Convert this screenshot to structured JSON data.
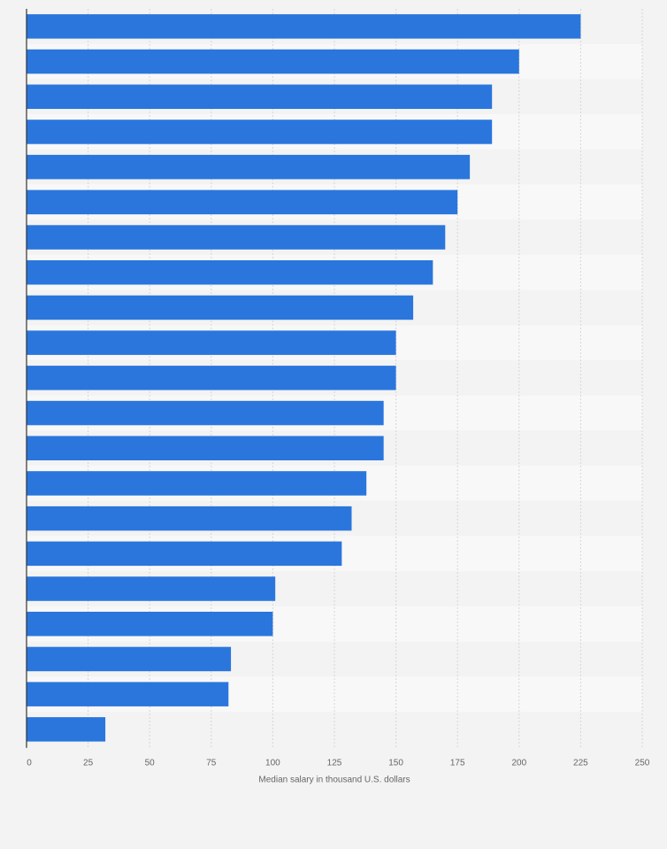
{
  "chart_data": {
    "type": "bar",
    "orientation": "horizontal",
    "title": "",
    "xlabel": "Median salary in thousand U.S. dollars",
    "ylabel": "",
    "xlim": [
      0,
      250
    ],
    "x_ticks": [
      "0",
      "25",
      "50",
      "75",
      "100",
      "125",
      "150",
      "175",
      "200",
      "225",
      "250"
    ],
    "values": [
      225,
      200,
      189,
      189,
      180,
      175,
      170,
      165,
      157,
      150,
      150,
      145,
      145,
      138,
      132,
      128,
      101,
      100,
      83,
      82,
      32
    ],
    "grid": true,
    "legend": "none",
    "bar_color": "#2a76dd",
    "band_colors": [
      "#f3f3f3",
      "#f8f8f8"
    ],
    "grid_color": "#d6d6d6",
    "axis_color": "#333333"
  }
}
